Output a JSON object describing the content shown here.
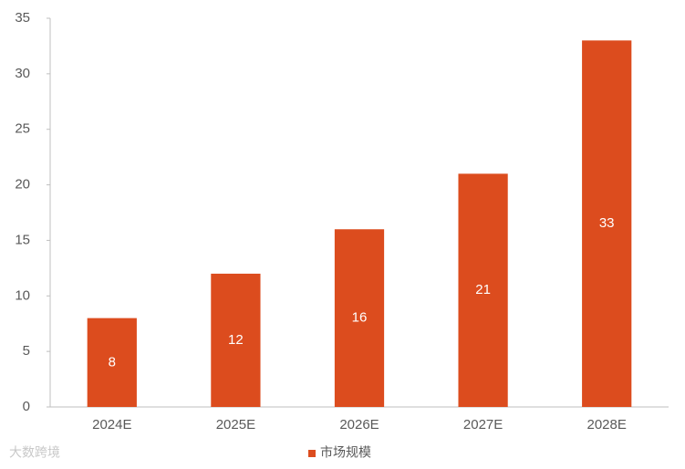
{
  "chart_data": {
    "type": "bar",
    "categories": [
      "2024E",
      "2025E",
      "2026E",
      "2027E",
      "2028E"
    ],
    "series": [
      {
        "name": "市场规模",
        "color": "#dc4c1e",
        "values": [
          8,
          12,
          16,
          21,
          33
        ]
      }
    ],
    "ylim": [
      0,
      35
    ],
    "yticks": [
      0,
      5,
      10,
      15,
      20,
      25,
      30,
      35
    ],
    "grid": false,
    "legend": "bottom",
    "watermark": "大数跨境"
  }
}
